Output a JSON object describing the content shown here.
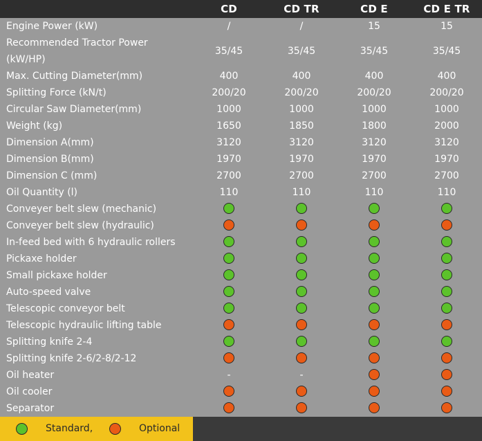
{
  "header": {
    "columns": [
      "CD",
      "CD TR",
      "CD E",
      "CD E TR"
    ]
  },
  "rows": [
    {
      "label": "Engine Power (kW)",
      "type": "text",
      "values": [
        "/",
        "/",
        "15",
        "15"
      ]
    },
    {
      "label": "Recommended Tractor Power (kW/HP)",
      "type": "text",
      "tall": true,
      "values": [
        "35/45",
        "35/45",
        "35/45",
        "35/45"
      ]
    },
    {
      "label": "Max. Cutting Diameter(mm)",
      "type": "text",
      "values": [
        "400",
        "400",
        "400",
        "400"
      ]
    },
    {
      "label": "Splitting Force (kN/t)",
      "type": "text",
      "values": [
        "200/20",
        "200/20",
        "200/20",
        "200/20"
      ]
    },
    {
      "label": "Circular Saw Diameter(mm)",
      "type": "text",
      "values": [
        "1000",
        "1000",
        "1000",
        "1000"
      ]
    },
    {
      "label": "Weight (kg)",
      "type": "text",
      "values": [
        "1650",
        "1850",
        "1800",
        "2000"
      ]
    },
    {
      "label": "Dimension A(mm)",
      "type": "text",
      "values": [
        "3120",
        "3120",
        "3120",
        "3120"
      ]
    },
    {
      "label": "Dimension B(mm)",
      "type": "text",
      "values": [
        "1970",
        "1970",
        "1970",
        "1970"
      ]
    },
    {
      "label": "Dimension C (mm)",
      "type": "text",
      "values": [
        "2700",
        "2700",
        "2700",
        "2700"
      ]
    },
    {
      "label": "Oil Quantity (l)",
      "type": "text",
      "values": [
        "110",
        "110",
        "110",
        "110"
      ]
    },
    {
      "label": "Conveyer belt slew (mechanic)",
      "type": "mark",
      "values": [
        "standard",
        "standard",
        "standard",
        "standard"
      ]
    },
    {
      "label": "Conveyer belt slew (hydraulic)",
      "type": "mark",
      "values": [
        "optional",
        "optional",
        "optional",
        "optional"
      ]
    },
    {
      "label": "In-feed bed with 6 hydraulic rollers",
      "type": "mark",
      "values": [
        "standard",
        "standard",
        "standard",
        "standard"
      ]
    },
    {
      "label": "Pickaxe holder",
      "type": "mark",
      "values": [
        "standard",
        "standard",
        "standard",
        "standard"
      ]
    },
    {
      "label": "Small pickaxe holder",
      "type": "mark",
      "values": [
        "standard",
        "standard",
        "standard",
        "standard"
      ]
    },
    {
      "label": "Auto-speed valve",
      "type": "mark",
      "values": [
        "standard",
        "standard",
        "standard",
        "standard"
      ]
    },
    {
      "label": "Telescopic conveyor belt",
      "type": "mark",
      "values": [
        "standard",
        "standard",
        "standard",
        "standard"
      ]
    },
    {
      "label": "Telescopic hydraulic lifting table",
      "type": "mark",
      "values": [
        "optional",
        "optional",
        "optional",
        "optional"
      ]
    },
    {
      "label": "Splitting knife 2-4",
      "type": "mark",
      "values": [
        "standard",
        "standard",
        "standard",
        "standard"
      ]
    },
    {
      "label": "Splitting knife 2-6/2-8/2-12",
      "type": "mark",
      "values": [
        "optional",
        "optional",
        "optional",
        "optional"
      ]
    },
    {
      "label": "Oil heater",
      "type": "mark",
      "values": [
        "-",
        "-",
        "optional",
        "optional"
      ]
    },
    {
      "label": "Oil cooler",
      "type": "mark",
      "values": [
        "optional",
        "optional",
        "optional",
        "optional"
      ]
    },
    {
      "label": "Separator",
      "type": "mark",
      "values": [
        "optional",
        "optional",
        "optional",
        "optional"
      ]
    }
  ],
  "legend": {
    "standard_label": "Standard,",
    "optional_label": "Optional"
  },
  "colors": {
    "standard": "#5cc22b",
    "optional": "#e95b16",
    "header_bg": "#2e2e2e",
    "legend_bg": "#f2c21b"
  }
}
